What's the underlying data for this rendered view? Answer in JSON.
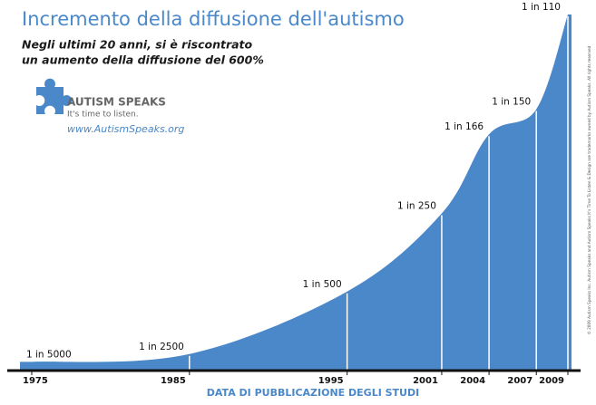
{
  "chart_data": {
    "type": "area",
    "title": "Incremento della diffusione dell'autismo",
    "subtitle": [
      "Negli ultimi 20 anni, si è riscontrato",
      "un aumento della diffusione del 600%"
    ],
    "x_label": "DATA DI PUBBLICAZIONE DEGLI STUDI",
    "x": [
      1975,
      1985,
      1995,
      2001,
      2004,
      2007,
      2009
    ],
    "values": [
      5000,
      2500,
      500,
      250,
      166,
      150,
      110
    ],
    "value_labels": [
      "1 in 5000",
      "1 in 2500",
      "1 in 500",
      "1 in 250",
      "1 in 166",
      "1 in 150",
      "1 in 110"
    ],
    "xlim": [
      1975,
      2009
    ],
    "xticks": [
      1975,
      1985,
      1995,
      2001,
      2004,
      2007,
      2009
    ],
    "color": "#4a88c9",
    "logo": {
      "name": "AUTISM SPEAKS",
      "tagline": "It's time to listen.",
      "url": "www.AutismSpeaks.org"
    },
    "copyright": "© 2009 Autism Speaks Inc. Autism Speaks and Autism Speaks It's Time To Listen & Design are trademarks owned by Autism Speaks. All rights reserved"
  }
}
